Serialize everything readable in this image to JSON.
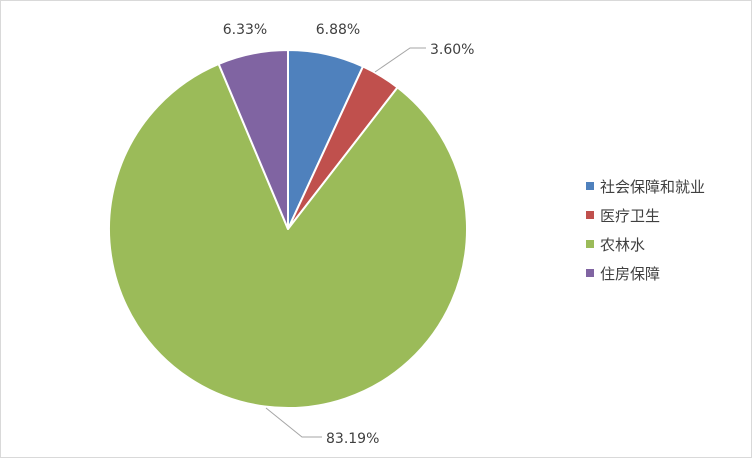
{
  "chart_data": {
    "type": "pie",
    "title": "",
    "categories": [
      "社会保障和就业",
      "医疗卫生",
      "农林水",
      "住房保障"
    ],
    "values": [
      6.88,
      3.6,
      83.19,
      6.33
    ],
    "labels": [
      "6.88%",
      "3.60%",
      "83.19%",
      "6.33%"
    ],
    "colors": [
      "#4f81bd",
      "#c0504d",
      "#9bbb59",
      "#8064a2"
    ],
    "legend_position": "right",
    "start_angle": "12 o'clock",
    "direction": "clockwise"
  }
}
